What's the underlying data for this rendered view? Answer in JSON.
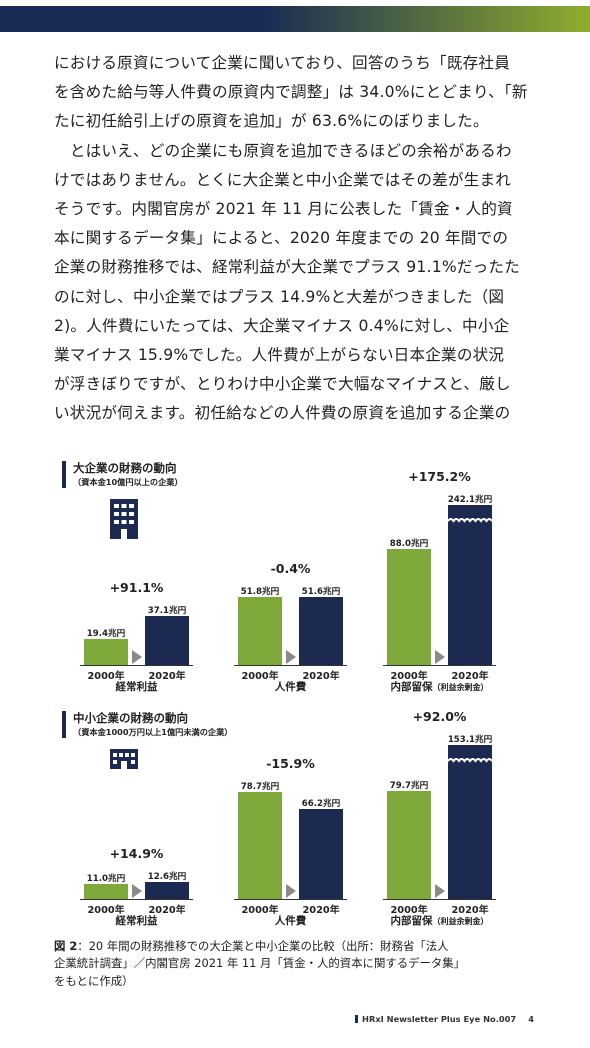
{
  "header": {
    "band_color_start": "#1a2c55",
    "band_color_end": "#8fae2e"
  },
  "paragraph_lines": [
    "における原資について企業に聞いており、回答のうち「既存社員",
    "を含めた給与等人件費の原資内で調整」は 34.0%にとどまり、「新",
    "たに初任給引上げの原資を追加」が 63.6%にのぼりました。",
    "　とはいえ、どの企業にも原資を追加できるほどの余裕があるわ",
    "けではありません。とくに大企業と中小企業ではその差が生まれ",
    "そうです。内閣官房が 2021 年 11 月に公表した「賃金・人的資",
    "本に関するデータ集」によると、2020 年度までの 20 年間での",
    "企業の財務推移では、経常利益が大企業でプラス 91.1%だったた",
    "のに対し、中小企業ではプラス 14.9%と大差がつきました（図",
    "2)。人件費にいたっては、大企業マイナス 0.4%に対し、中小企",
    "業マイナス 15.9%でした。人件費が上がらない日本企業の状況",
    "が浮きぼりですが、とりわけ中小企業で大幅なマイナスと、厳し",
    "い状況が伺えます。初任給などの人件費の原資を追加する企業の"
  ],
  "chart_data": [
    {
      "type": "bar",
      "title": "大企業の財務の動向",
      "subtitle": "（資本金10億円以上の企業）",
      "categories": [
        "2000年",
        "2020年"
      ],
      "colors": {
        "2000年": "#7ea83a",
        "2020年": "#1c2a52"
      },
      "groups": [
        {
          "metric": "経常利益",
          "metric_note": "",
          "values": [
            19.4,
            37.1
          ],
          "labels": [
            "19.4兆円",
            "37.1兆円"
          ],
          "change": "+91.1%",
          "axis_break": false
        },
        {
          "metric": "人件費",
          "metric_note": "",
          "values": [
            51.8,
            51.6
          ],
          "labels": [
            "51.8兆円",
            "51.6兆円"
          ],
          "change": "-0.4%",
          "axis_break": false
        },
        {
          "metric": "内部留保",
          "metric_note": "（利益余剰金）",
          "values": [
            88.0,
            242.1
          ],
          "labels": [
            "88.0兆円",
            "242.1兆円"
          ],
          "change": "+175.2%",
          "axis_break": true
        }
      ]
    },
    {
      "type": "bar",
      "title": "中小企業の財務の動向",
      "subtitle": "（資本金1000万円以上1億円未満の企業）",
      "categories": [
        "2000年",
        "2020年"
      ],
      "colors": {
        "2000年": "#7ea83a",
        "2020年": "#1c2a52"
      },
      "groups": [
        {
          "metric": "経常利益",
          "metric_note": "",
          "values": [
            11.0,
            12.6
          ],
          "labels": [
            "11.0兆円",
            "12.6兆円"
          ],
          "change": "+14.9%",
          "axis_break": false
        },
        {
          "metric": "人件費",
          "metric_note": "",
          "values": [
            78.7,
            66.2
          ],
          "labels": [
            "78.7兆円",
            "66.2兆円"
          ],
          "change": "-15.9%",
          "axis_break": false
        },
        {
          "metric": "内部留保",
          "metric_note": "（利益余剰金）",
          "values": [
            79.7,
            153.1
          ],
          "labels": [
            "79.7兆円",
            "153.1兆円"
          ],
          "change": "+92.0%",
          "axis_break": true
        }
      ]
    }
  ],
  "caption": {
    "label": "図 2",
    "lines": [
      "：20 年間の財務推移での大企業と中小企業の比較（出所：財務省「法人",
      "企業統計調査」／内閣官房 2021 年 11 月「賃金・人的資本に関するデータ集」",
      "をもとに作成）"
    ]
  },
  "footer": {
    "publication": "HRxI Newsletter Plus Eye  No.007",
    "page": "4"
  }
}
